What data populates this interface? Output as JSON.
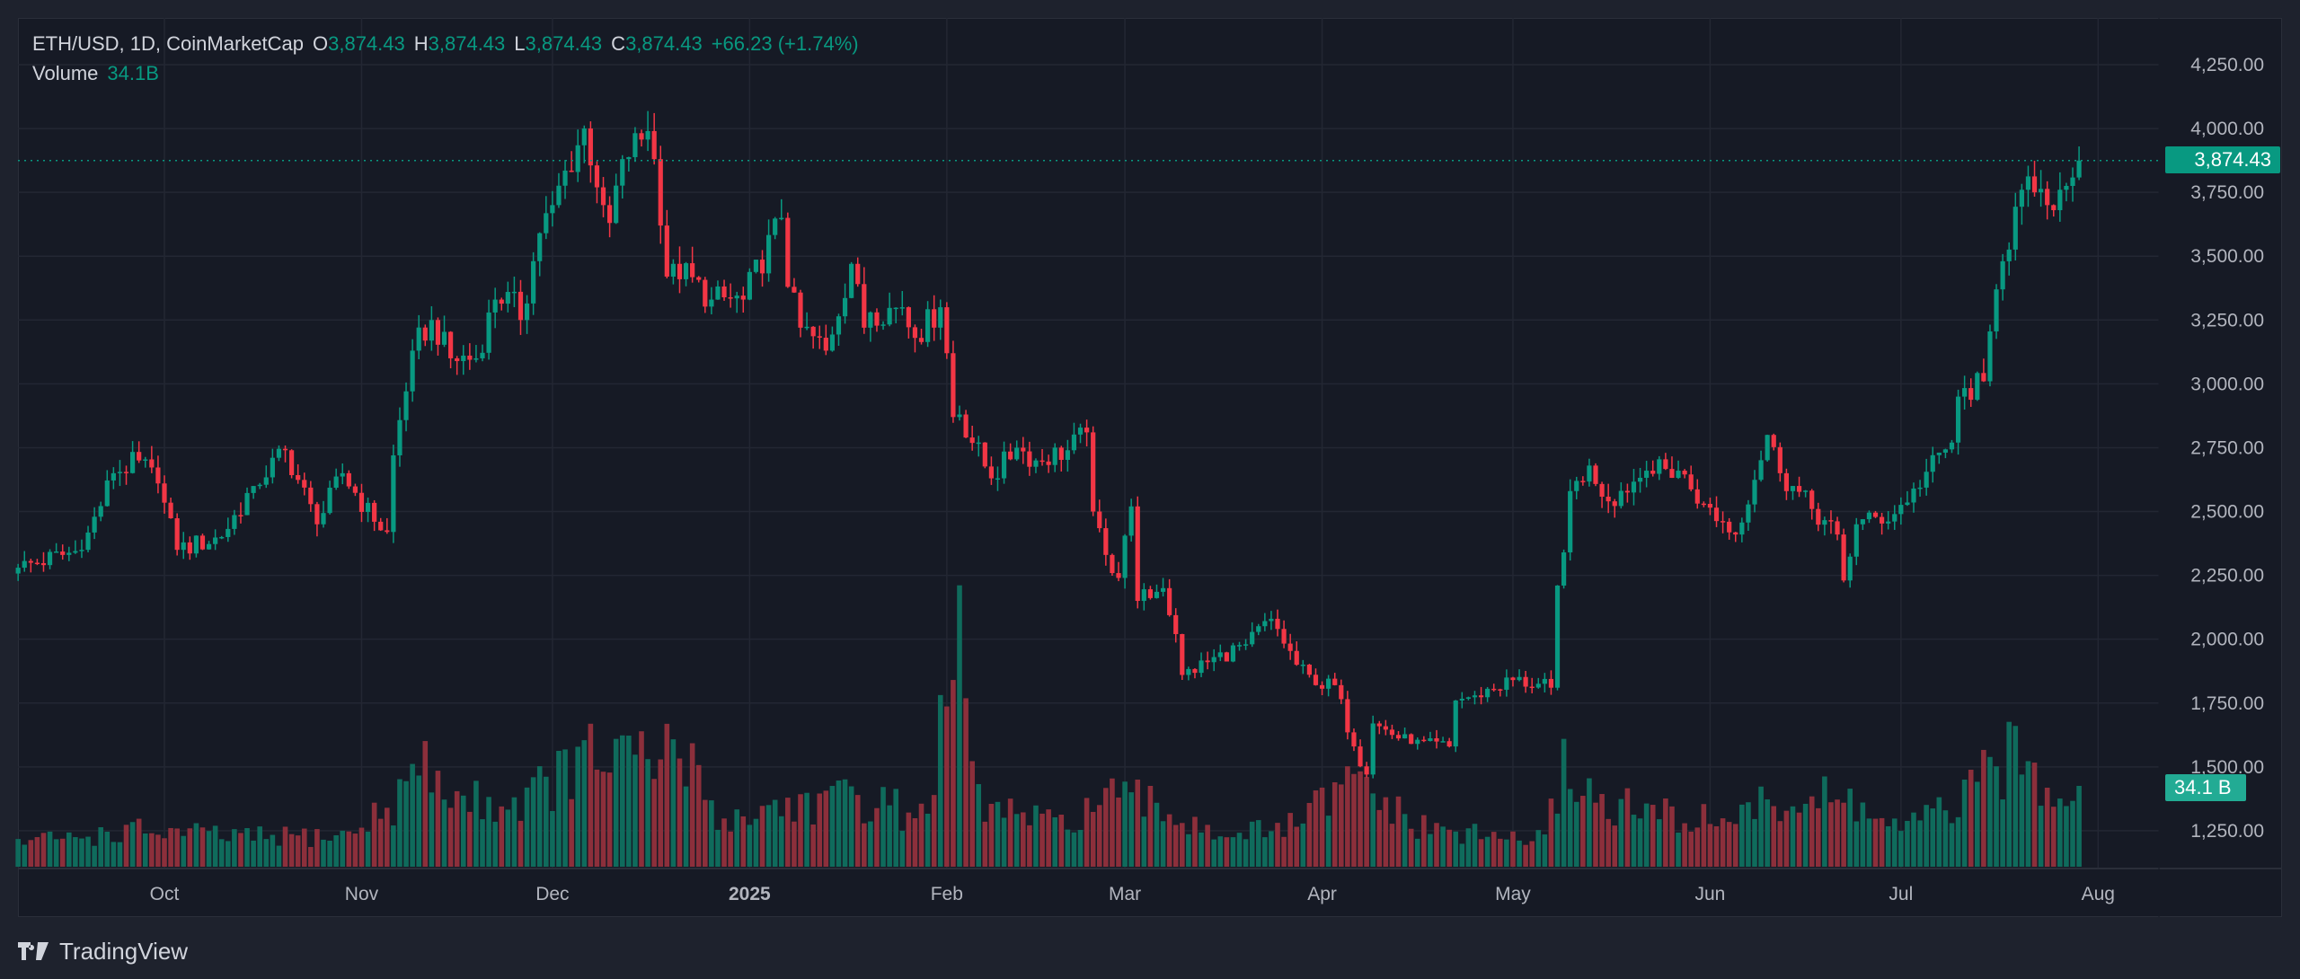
{
  "header": {
    "symbol": "ETH/USD, 1D, CoinMarketCap",
    "o_label": "O",
    "o": "3,874.43",
    "h_label": "H",
    "h": "3,874.43",
    "l_label": "L",
    "l": "3,874.43",
    "c_label": "C",
    "c": "3,874.43",
    "change": "+66.23 (+1.74%)",
    "volume_label": "Volume",
    "volume": "34.1B"
  },
  "price_tag": "3,874.43",
  "volume_tag": "34.1 B",
  "brand": "TradingView",
  "colors": {
    "up": "#089981",
    "down": "#f23645",
    "up_vol": "#0f6b5c",
    "down_vol": "#8c2f3b",
    "tag": "#089981",
    "vol_tag": "#22ab94"
  },
  "chart_data": {
    "type": "candlestick",
    "title": "ETH/USD, 1D, CoinMarketCap",
    "start_date": "2024-09-08",
    "end_date": "2025-07-29",
    "last_close": 3874.43,
    "ylim": [
      1130,
      4330
    ],
    "y_ticks": [
      "4,250.00",
      "4,000.00",
      "3,750.00",
      "3,500.00",
      "3,250.00",
      "3,000.00",
      "2,750.00",
      "2,500.00",
      "2,250.00",
      "2,000.00",
      "1,750.00",
      "1,500.00",
      "1,250.00"
    ],
    "y_tick_values": [
      4250,
      4000,
      3750,
      3500,
      3250,
      3000,
      2750,
      2500,
      2250,
      2000,
      1750,
      1500,
      1250
    ],
    "x_ticks": [
      {
        "label": "Oct",
        "date": "2024-10-01"
      },
      {
        "label": "Nov",
        "date": "2024-11-01"
      },
      {
        "label": "Dec",
        "date": "2024-12-01"
      },
      {
        "label": "2025",
        "date": "2025-01-01",
        "bold": true
      },
      {
        "label": "Feb",
        "date": "2025-02-01"
      },
      {
        "label": "Mar",
        "date": "2025-03-01"
      },
      {
        "label": "Apr",
        "date": "2025-04-01"
      },
      {
        "label": "May",
        "date": "2025-05-01"
      },
      {
        "label": "Jun",
        "date": "2025-06-01"
      },
      {
        "label": "Jul",
        "date": "2025-07-01"
      },
      {
        "label": "Aug",
        "date": "2025-08-01"
      }
    ],
    "close_anchors": [
      [
        "2024-09-08",
        2280
      ],
      [
        "2024-09-15",
        2330
      ],
      [
        "2024-09-18",
        2350
      ],
      [
        "2024-09-23",
        2650
      ],
      [
        "2024-09-27",
        2700
      ],
      [
        "2024-09-30",
        2610
      ],
      [
        "2024-10-03",
        2350
      ],
      [
        "2024-10-10",
        2400
      ],
      [
        "2024-10-15",
        2600
      ],
      [
        "2024-10-20",
        2740
      ],
      [
        "2024-10-25",
        2450
      ],
      [
        "2024-10-29",
        2650
      ],
      [
        "2024-11-03",
        2460
      ],
      [
        "2024-11-05",
        2420
      ],
      [
        "2024-11-06",
        2720
      ],
      [
        "2024-11-09",
        3130
      ],
      [
        "2024-11-12",
        3250
      ],
      [
        "2024-11-15",
        3100
      ],
      [
        "2024-11-19",
        3100
      ],
      [
        "2024-11-22",
        3330
      ],
      [
        "2024-11-24",
        3360
      ],
      [
        "2024-11-26",
        3250
      ],
      [
        "2024-11-29",
        3590
      ],
      [
        "2024-12-01",
        3700
      ],
      [
        "2024-12-06",
        4000
      ],
      [
        "2024-12-09",
        3700
      ],
      [
        "2024-12-10",
        3630
      ],
      [
        "2024-12-12",
        3880
      ],
      [
        "2024-12-16",
        3990
      ],
      [
        "2024-12-17",
        3880
      ],
      [
        "2024-12-18",
        3620
      ],
      [
        "2024-12-19",
        3420
      ],
      [
        "2024-12-20",
        3470
      ],
      [
        "2024-12-26",
        3330
      ],
      [
        "2024-12-31",
        3330
      ],
      [
        "2025-01-06",
        3650
      ],
      [
        "2025-01-07",
        3380
      ],
      [
        "2025-01-09",
        3220
      ],
      [
        "2025-01-13",
        3130
      ],
      [
        "2025-01-17",
        3470
      ],
      [
        "2025-01-19",
        3220
      ],
      [
        "2025-01-20",
        3280
      ],
      [
        "2025-01-25",
        3300
      ],
      [
        "2025-01-27",
        3180
      ],
      [
        "2025-01-31",
        3300
      ],
      [
        "2025-02-01",
        3120
      ],
      [
        "2025-02-02",
        2870
      ],
      [
        "2025-02-03",
        2880
      ],
      [
        "2025-02-08",
        2630
      ],
      [
        "2025-02-12",
        2750
      ],
      [
        "2025-02-15",
        2700
      ],
      [
        "2025-02-20",
        2740
      ],
      [
        "2025-02-23",
        2810
      ],
      [
        "2025-02-24",
        2500
      ],
      [
        "2025-02-26",
        2330
      ],
      [
        "2025-02-28",
        2240
      ],
      [
        "2025-03-02",
        2520
      ],
      [
        "2025-03-03",
        2150
      ],
      [
        "2025-03-07",
        2200
      ],
      [
        "2025-03-09",
        2020
      ],
      [
        "2025-03-10",
        1860
      ],
      [
        "2025-03-14",
        1910
      ],
      [
        "2025-03-20",
        1980
      ],
      [
        "2025-03-24",
        2080
      ],
      [
        "2025-03-28",
        1900
      ],
      [
        "2025-03-31",
        1820
      ],
      [
        "2025-04-03",
        1820
      ],
      [
        "2025-04-06",
        1580
      ],
      [
        "2025-04-08",
        1470
      ],
      [
        "2025-04-09",
        1670
      ],
      [
        "2025-04-15",
        1590
      ],
      [
        "2025-04-21",
        1580
      ],
      [
        "2025-04-22",
        1760
      ],
      [
        "2025-04-25",
        1780
      ],
      [
        "2025-05-01",
        1840
      ],
      [
        "2025-05-07",
        1810
      ],
      [
        "2025-05-08",
        2210
      ],
      [
        "2025-05-09",
        2340
      ],
      [
        "2025-05-10",
        2580
      ],
      [
        "2025-05-13",
        2680
      ],
      [
        "2025-05-16",
        2540
      ],
      [
        "2025-05-22",
        2660
      ],
      [
        "2025-05-27",
        2660
      ],
      [
        "2025-05-31",
        2530
      ],
      [
        "2025-06-05",
        2410
      ],
      [
        "2025-06-10",
        2800
      ],
      [
        "2025-06-12",
        2650
      ],
      [
        "2025-06-17",
        2510
      ],
      [
        "2025-06-21",
        2410
      ],
      [
        "2025-06-22",
        2230
      ],
      [
        "2025-06-24",
        2450
      ],
      [
        "2025-06-30",
        2490
      ],
      [
        "2025-07-03",
        2590
      ],
      [
        "2025-07-09",
        2770
      ],
      [
        "2025-07-10",
        2950
      ],
      [
        "2025-07-14",
        3010
      ],
      [
        "2025-07-16",
        3370
      ],
      [
        "2025-07-17",
        3480
      ],
      [
        "2025-07-20",
        3760
      ],
      [
        "2025-07-22",
        3750
      ],
      [
        "2025-07-24",
        3700
      ],
      [
        "2025-07-26",
        3760
      ],
      [
        "2025-07-28",
        3808.2
      ],
      [
        "2025-07-29",
        3874.43
      ]
    ],
    "volume_anchors_billions": [
      [
        "2024-09-08",
        11
      ],
      [
        "2024-09-20",
        14
      ],
      [
        "2024-09-27",
        16
      ],
      [
        "2024-10-15",
        13
      ],
      [
        "2024-10-30",
        14
      ],
      [
        "2024-11-06",
        28
      ],
      [
        "2024-11-10",
        45
      ],
      [
        "2024-11-16",
        30
      ],
      [
        "2024-11-25",
        28
      ],
      [
        "2024-12-05",
        45
      ],
      [
        "2024-12-09",
        50
      ],
      [
        "2024-12-17",
        44
      ],
      [
        "2024-12-20",
        55
      ],
      [
        "2024-12-28",
        20
      ],
      [
        "2025-01-07",
        28
      ],
      [
        "2025-01-20",
        30
      ],
      [
        "2025-01-28",
        22
      ],
      [
        "2025-02-03",
        92
      ],
      [
        "2025-02-06",
        28
      ],
      [
        "2025-02-18",
        18
      ],
      [
        "2025-02-26",
        30
      ],
      [
        "2025-03-04",
        28
      ],
      [
        "2025-03-15",
        16
      ],
      [
        "2025-03-25",
        15
      ],
      [
        "2025-04-07",
        38
      ],
      [
        "2025-04-15",
        18
      ],
      [
        "2025-04-25",
        14
      ],
      [
        "2025-05-06",
        12
      ],
      [
        "2025-05-09",
        45
      ],
      [
        "2025-05-15",
        28
      ],
      [
        "2025-05-30",
        20
      ],
      [
        "2025-06-12",
        28
      ],
      [
        "2025-06-22",
        30
      ],
      [
        "2025-07-01",
        16
      ],
      [
        "2025-07-10",
        28
      ],
      [
        "2025-07-18",
        48
      ],
      [
        "2025-07-25",
        38
      ],
      [
        "2025-07-29",
        34.1
      ]
    ]
  }
}
